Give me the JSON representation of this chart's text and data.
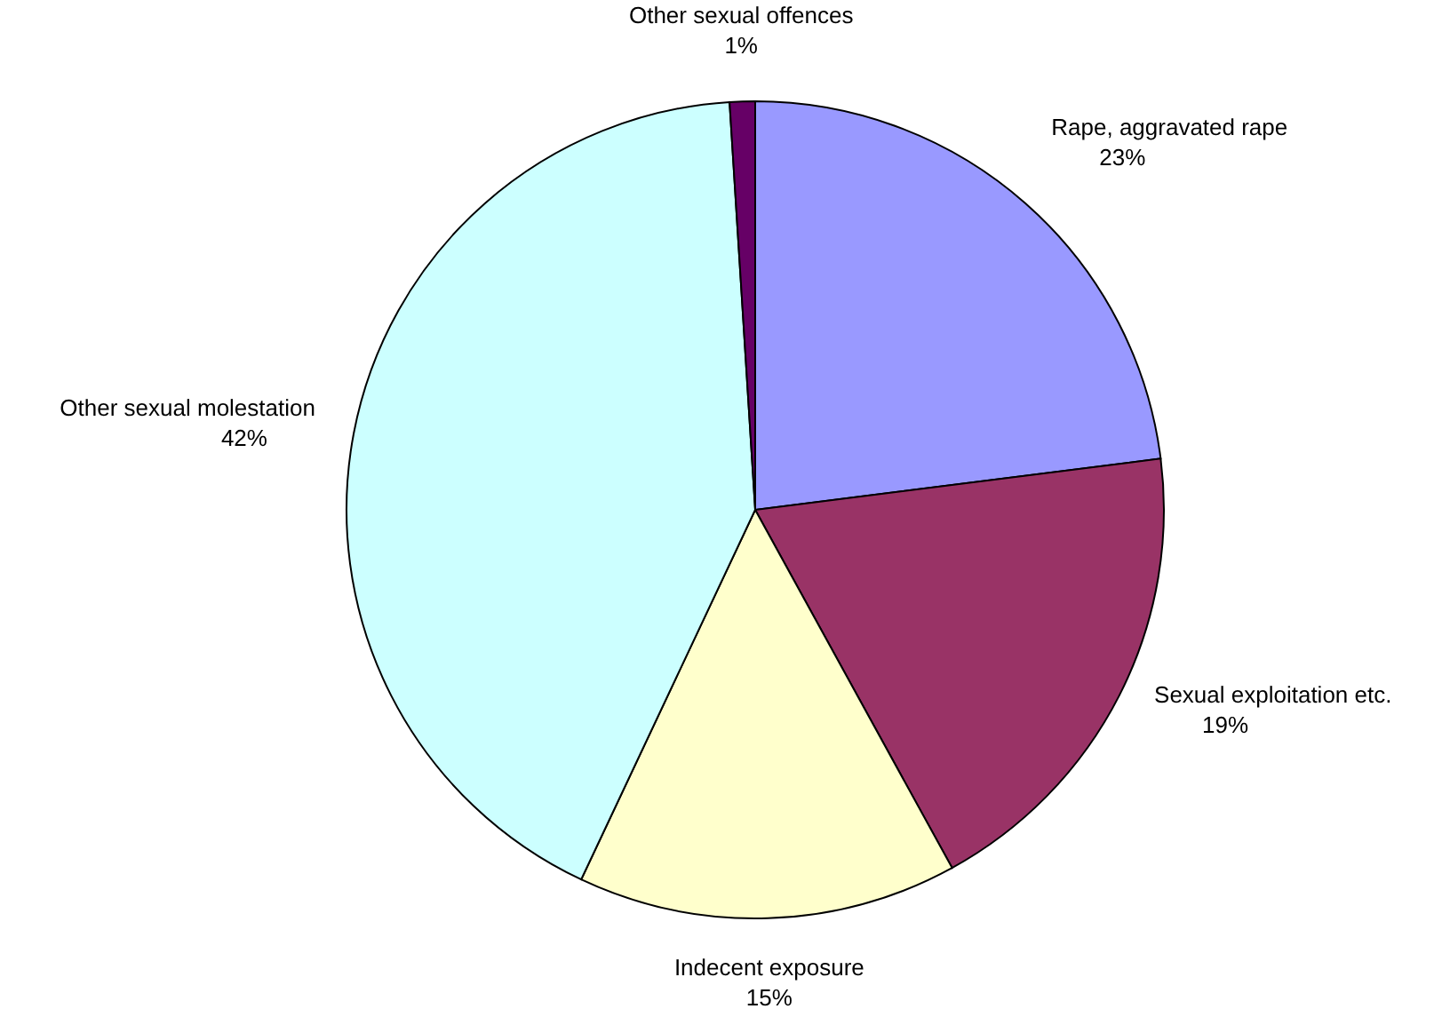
{
  "chart_data": {
    "type": "pie",
    "categories": [
      "Rape, aggravated rape",
      "Sexual exploitation etc.",
      "Indecent exposure",
      "Other sexual molestation",
      "Other sexual offences"
    ],
    "values": [
      23,
      19,
      15,
      42,
      1
    ],
    "value_labels": [
      "23%",
      "19%",
      "15%",
      "42%",
      "1%"
    ],
    "colors": [
      "#9999ff",
      "#993366",
      "#ffffcc",
      "#ccffff",
      "#660066"
    ]
  }
}
